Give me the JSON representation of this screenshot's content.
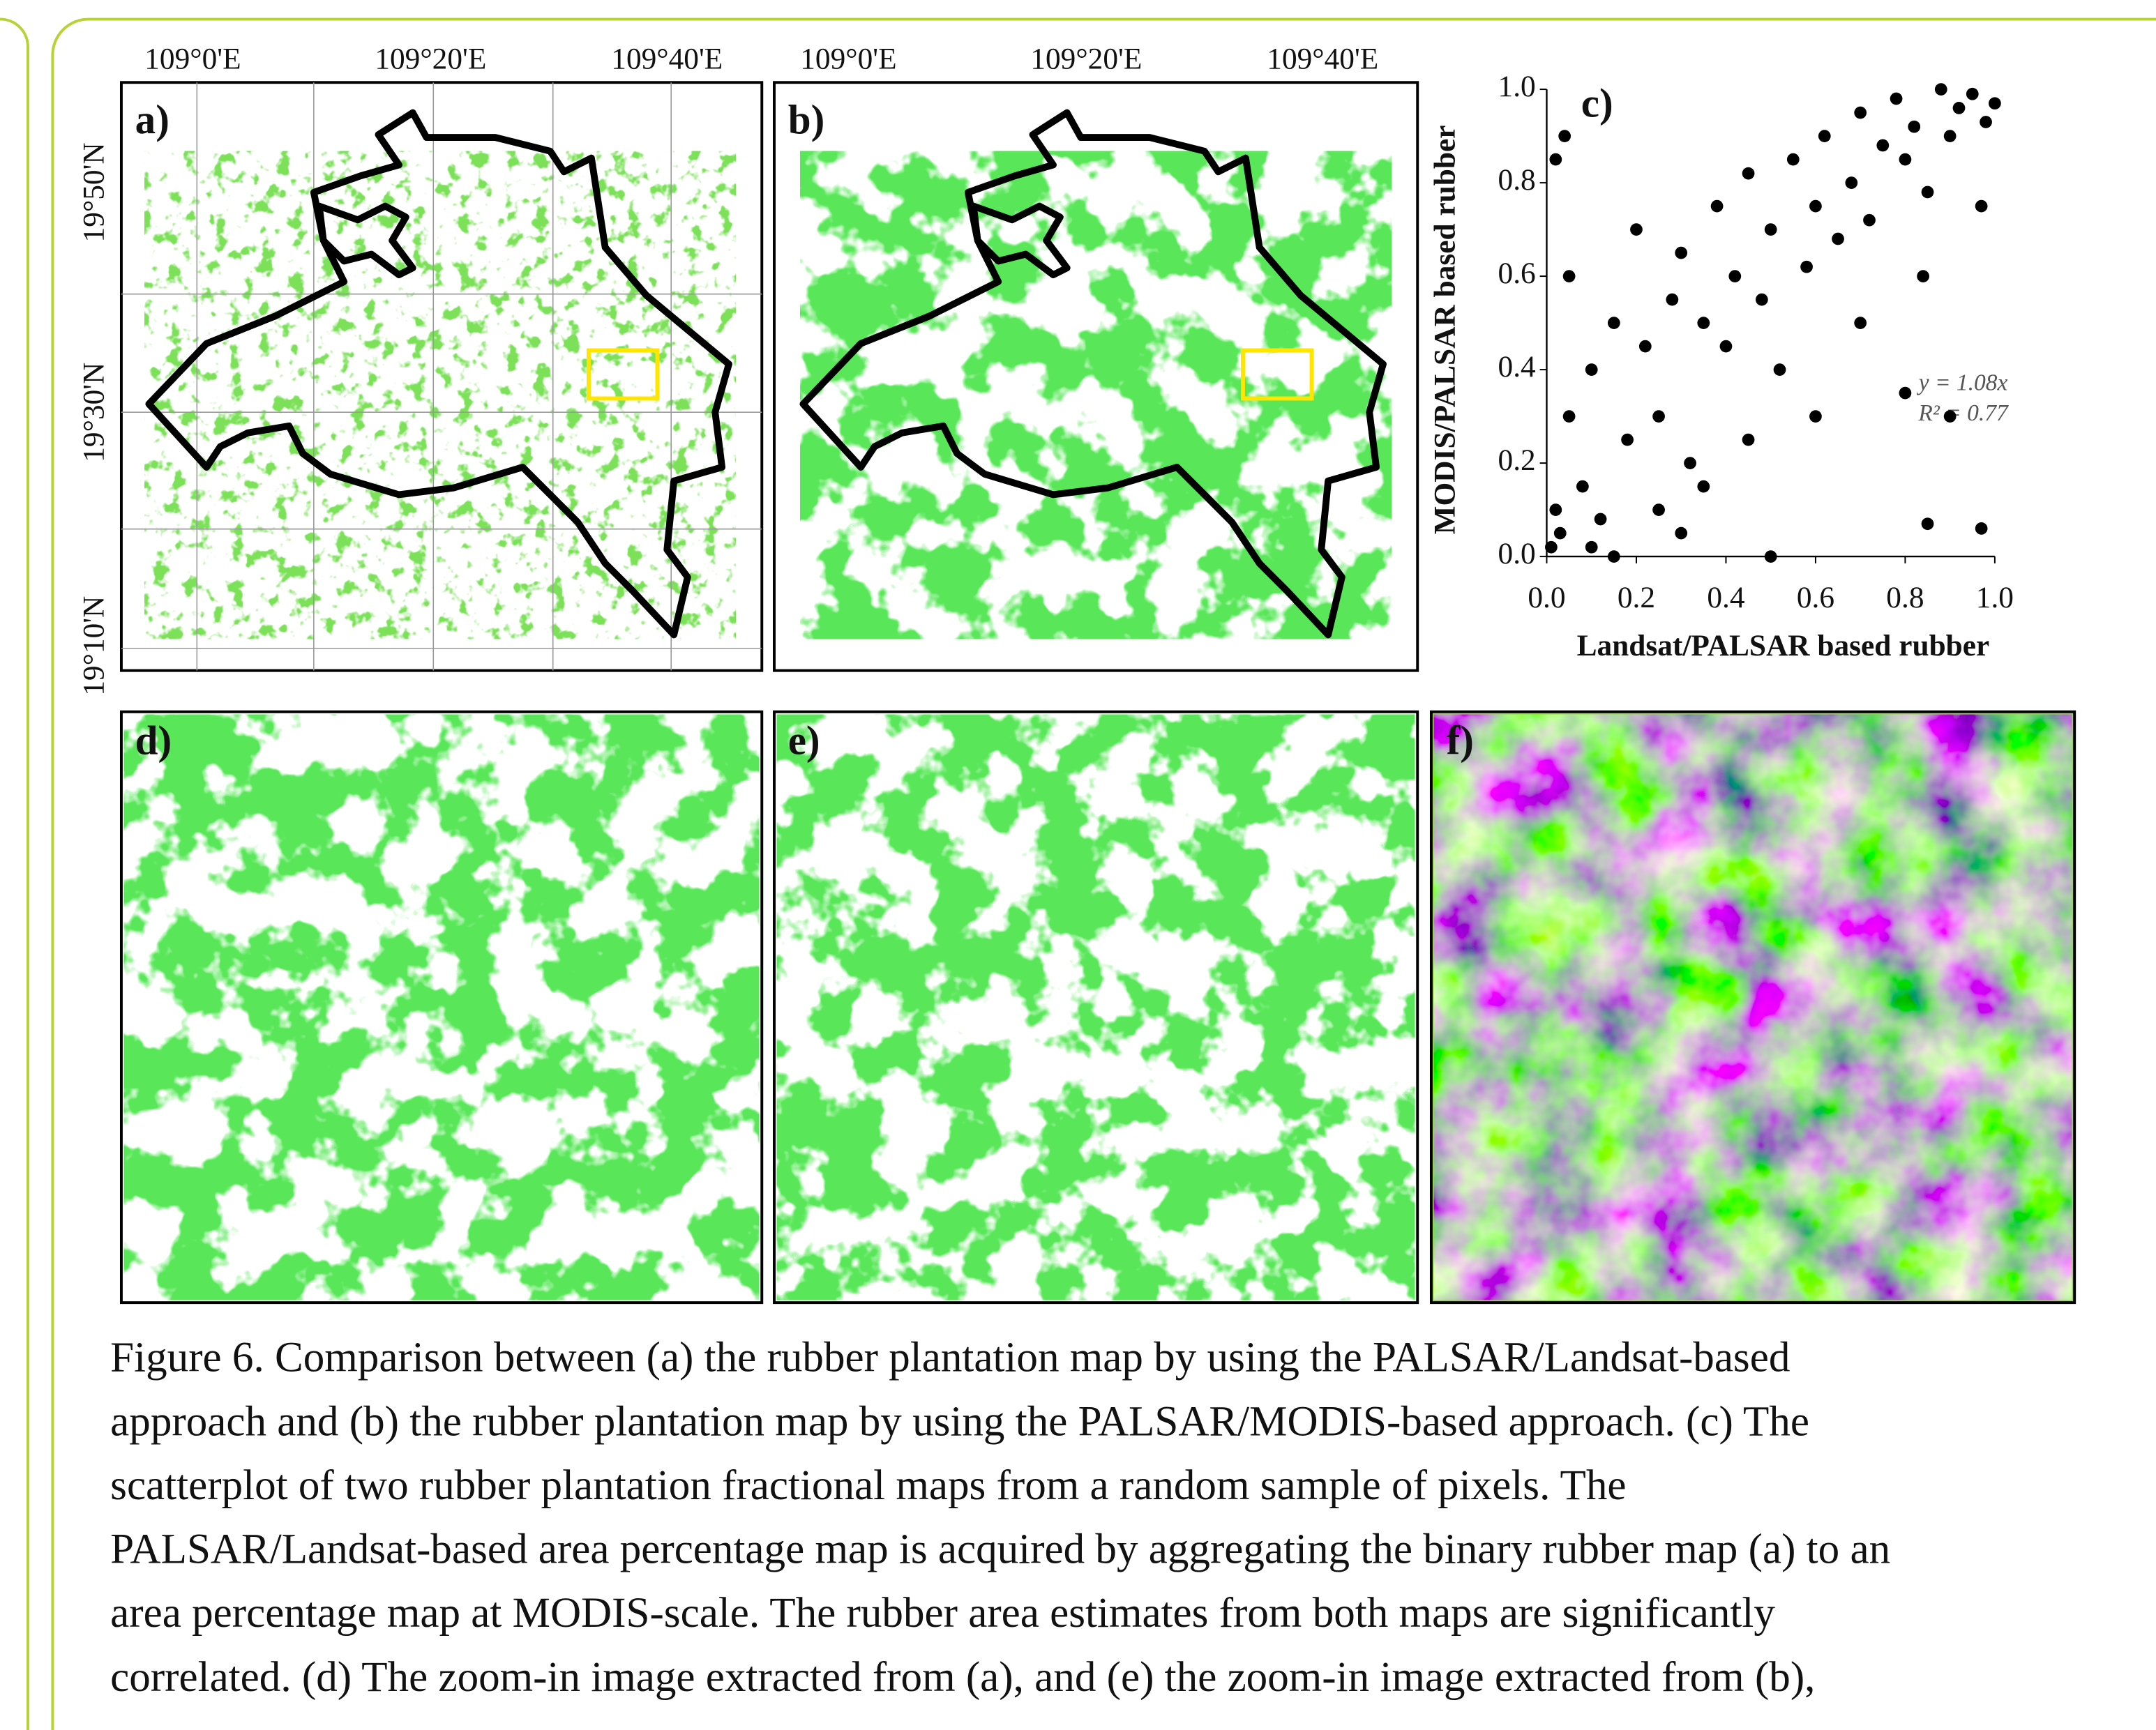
{
  "figure": {
    "map_a": {
      "label": "a)",
      "lon_ticks": [
        "109°0'E",
        "109°20'E",
        "109°40'E"
      ],
      "lat_ticks": [
        "19°50'N",
        "19°30'N",
        "19°10'N"
      ]
    },
    "map_b": {
      "label": "b)",
      "lon_ticks": [
        "109°0'E",
        "109°20'E",
        "109°40'E"
      ]
    },
    "zoom_panels": [
      "d)",
      "e)",
      "f)"
    ]
  },
  "chart_data": {
    "type": "scatter",
    "panel_label": "c)",
    "x_label": "Landsat/PALSAR based rubber",
    "y_label": "MODIS/PALSAR based rubber",
    "annotations": [
      "y = 1.08x",
      "R² = 0.77"
    ],
    "color": "#000000",
    "x": [
      0.01,
      0.02,
      0.03,
      0.05,
      0.05,
      0.08,
      0.1,
      0.12,
      0.15,
      0.18,
      0.2,
      0.22,
      0.25,
      0.28,
      0.3,
      0.32,
      0.35,
      0.38,
      0.4,
      0.42,
      0.45,
      0.48,
      0.5,
      0.52,
      0.55,
      0.58,
      0.6,
      0.62,
      0.65,
      0.68,
      0.7,
      0.72,
      0.75,
      0.78,
      0.8,
      0.82,
      0.85,
      0.88,
      0.9,
      0.92,
      0.95,
      0.98,
      1.0,
      0.97,
      0.9,
      0.85,
      0.02,
      0.04,
      0.1,
      0.3,
      0.5,
      0.6,
      0.35,
      0.15,
      0.8,
      0.84,
      0.97,
      0.7,
      0.45,
      0.25
    ],
    "values": [
      0.02,
      0.1,
      0.05,
      0.3,
      0.6,
      0.15,
      0.4,
      0.08,
      0.5,
      0.25,
      0.7,
      0.45,
      0.3,
      0.55,
      0.65,
      0.2,
      0.5,
      0.75,
      0.45,
      0.6,
      0.82,
      0.55,
      0.7,
      0.4,
      0.85,
      0.62,
      0.75,
      0.9,
      0.68,
      0.8,
      0.95,
      0.72,
      0.88,
      0.98,
      0.85,
      0.92,
      0.78,
      1.0,
      0.9,
      0.96,
      0.99,
      0.93,
      0.97,
      0.06,
      0.3,
      0.07,
      0.85,
      0.9,
      0.02,
      0.05,
      0.0,
      0.3,
      0.15,
      0.0,
      0.35,
      0.6,
      0.75,
      0.5,
      0.25,
      0.1
    ],
    "xlim": [
      0,
      1
    ],
    "ylim": [
      0,
      1
    ],
    "xticks": [
      {
        "value": 0,
        "label": "0.0"
      },
      {
        "value": 0.2,
        "label": "0.2"
      },
      {
        "value": 0.4,
        "label": "0.4"
      },
      {
        "value": 0.6,
        "label": "0.6"
      },
      {
        "value": 0.8,
        "label": "0.8"
      },
      {
        "value": 1,
        "label": "1.0"
      }
    ],
    "yticks": [
      {
        "value": 0,
        "label": "0.0"
      },
      {
        "value": 0.2,
        "label": "0.2"
      },
      {
        "value": 0.4,
        "label": "0.4"
      },
      {
        "value": 0.6,
        "label": "0.6"
      },
      {
        "value": 0.8,
        "label": "0.8"
      },
      {
        "value": 1,
        "label": "1.0"
      }
    ]
  },
  "caption": {
    "lines": [
      "Figure 6. Comparison between (a) the rubber plantation map by using the PALSAR/Landsat-based",
      "approach and (b) the rubber plantation map by using the PALSAR/MODIS-based approach. (c) The",
      "scatterplot of two rubber plantation fractional maps from a random sample of pixels. The",
      "PALSAR/Landsat-based area percentage map is acquired by aggregating the binary rubber map (a) to an",
      "area percentage map at MODIS-scale. The rubber area estimates from both maps are significantly",
      "correlated. (d) The zoom-in image extracted from (a), and (e) the zoom-in image extracted from (b),"
    ]
  }
}
